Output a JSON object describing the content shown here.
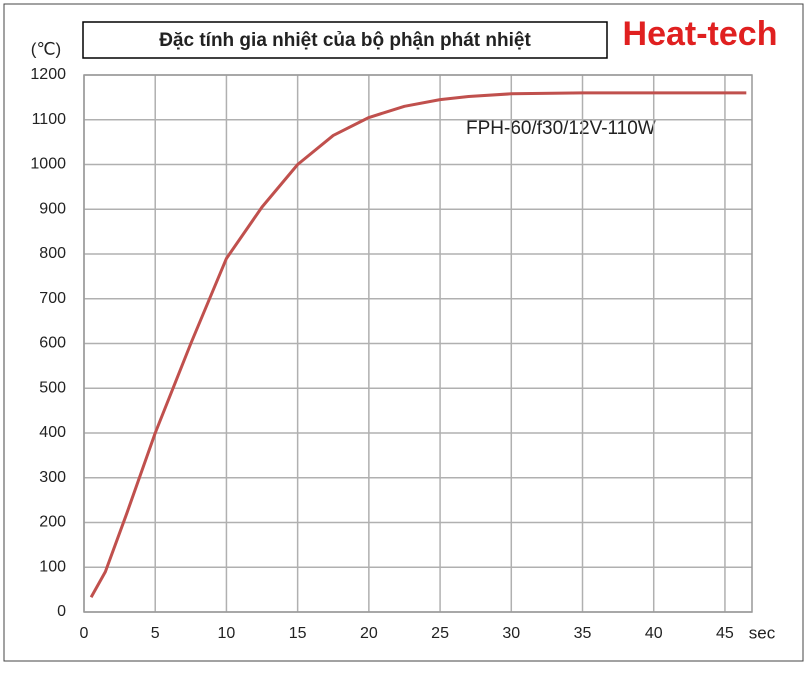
{
  "chart_data": {
    "type": "line",
    "title": "Đặc tính gia nhiệt của bộ phận phát nhiệt",
    "brand": "Heat-tech",
    "y_label": "(℃)",
    "x_label": "sec",
    "annotation": "FPH-60/f30/12V-110W",
    "series": [
      {
        "color": "#c0504d",
        "x": [
          0.5,
          1.5,
          3,
          5,
          7.5,
          10,
          12.5,
          15,
          17.5,
          20,
          22.5,
          25,
          27,
          30,
          35,
          46.5
        ],
        "values": [
          33,
          90,
          220,
          400,
          600,
          790,
          905,
          1000,
          1065,
          1105,
          1130,
          1145,
          1152,
          1158,
          1160,
          1160
        ]
      }
    ],
    "xlim": [
      0,
      46.9
    ],
    "xticks": [
      0,
      5,
      10,
      15,
      20,
      25,
      30,
      35,
      40,
      45
    ],
    "ylim": [
      0,
      1200
    ],
    "yticks": [
      0,
      100,
      200,
      300,
      400,
      500,
      600,
      700,
      800,
      900,
      1000,
      1100,
      1200
    ],
    "grid": true
  }
}
